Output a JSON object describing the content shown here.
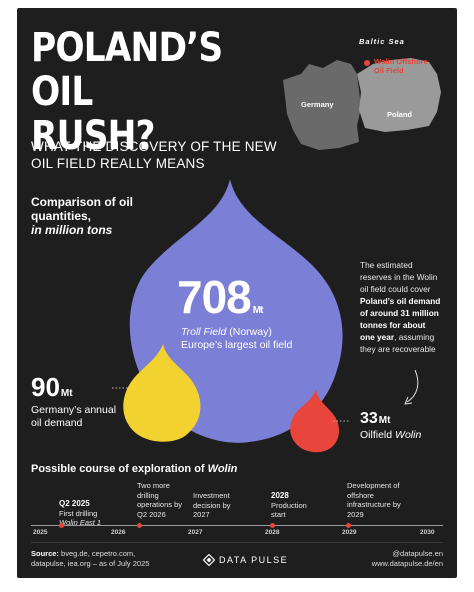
{
  "title": {
    "line1": "POLAND’S OIL",
    "line2": "RUSH?"
  },
  "subtitle": {
    "line1": "WHAT THE DISCOVERY OF THE NEW",
    "line2": "OIL FIELD REALLY MEANS"
  },
  "comparison": {
    "line1": "Comparison of oil",
    "line2": "quantities,",
    "line3": "in million tons"
  },
  "map": {
    "sea": "Baltic Sea",
    "site1": "Wolin Offshore",
    "site2": "Oil Field",
    "germany": "Germany",
    "poland": "Poland",
    "site_color": "#e8453c"
  },
  "troll": {
    "value": "708",
    "unit": "Mt",
    "name": "Troll Field",
    "country": "(Norway)",
    "desc": "Europe’s largest oil field",
    "color": "#7b7fd6"
  },
  "germany": {
    "value": "90",
    "unit": "Mt",
    "line1": "Germany’s annual",
    "line2": "oil demand",
    "color": "#f2d22e"
  },
  "wolin": {
    "value": "33",
    "unit": "Mt",
    "label": "Oilfield",
    "name": "Wolin",
    "color": "#e8453c"
  },
  "estimate": {
    "l1": "The estimated",
    "l2": "reserves in the Wolin",
    "l3": "oil field could cover",
    "b1": "Poland’s oil demand",
    "b2": "of around 31 million",
    "b3": "tonnes for about",
    "b4": "one year",
    "l4": ", assuming",
    "l5": "they are recoverable"
  },
  "timeline": {
    "title": "Possible course of exploration of",
    "title_name": "Wolin",
    "years": [
      "2025",
      "2026",
      "2027",
      "2028",
      "2029",
      "2030"
    ],
    "events": [
      {
        "bold": "Q2 2025",
        "l1": "First drilling",
        "l2": "Wolin East 1"
      },
      {
        "l1": "Two more",
        "l2": "drilling",
        "l3": "operations by",
        "l4": "Q2 2026"
      },
      {
        "l1": "Investment",
        "l2": "decision by",
        "l3": "2027"
      },
      {
        "bold": "2028",
        "l1": "Production",
        "l2": "start"
      },
      {
        "l1": "Development of",
        "l2": "offshore",
        "l3": "infrastructure by",
        "l4": "2029"
      }
    ]
  },
  "footer": {
    "source_label": "Source:",
    "source1": "bveg.de, cepetro.com,",
    "source2": "datapulse, iea.org – as of July 2025",
    "brand": "DATA PULSE",
    "handle": "@datapulse.en",
    "site": "www.datapulse.de/en"
  }
}
